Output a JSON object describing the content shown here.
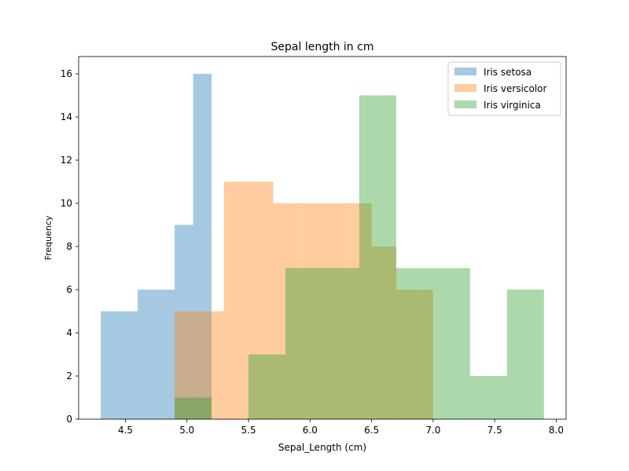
{
  "chart_data": {
    "type": "bar",
    "title": "Sepal length in cm",
    "xlabel": "Sepal_Length (cm)",
    "ylabel": "Frequency",
    "xlim": [
      4.12,
      8.08
    ],
    "ylim": [
      0,
      16.8
    ],
    "xticks": [
      4.5,
      5.0,
      5.5,
      6.0,
      6.5,
      7.0,
      7.5,
      8.0
    ],
    "xtick_labels": [
      "4.5",
      "5.0",
      "5.5",
      "6.0",
      "6.5",
      "7.0",
      "7.5",
      "8.0"
    ],
    "yticks": [
      0,
      2,
      4,
      6,
      8,
      10,
      12,
      14,
      16
    ],
    "ytick_labels": [
      "0",
      "2",
      "4",
      "6",
      "8",
      "10",
      "12",
      "14",
      "16"
    ],
    "legend_position": "top-right",
    "grid": false,
    "series": [
      {
        "name": "Iris setosa",
        "color": "#1f77b4",
        "bin_edges": [
          4.3,
          4.45,
          4.6,
          4.75,
          4.9,
          5.05,
          5.2,
          5.35,
          5.5,
          5.65,
          5.8
        ],
        "counts": [
          5,
          5,
          6,
          6,
          9,
          16,
          0,
          0,
          0,
          0
        ]
      },
      {
        "name": "Iris versicolor",
        "color": "#ff7f0e",
        "bin_edges": [
          4.9,
          5.1,
          5.3,
          5.5,
          5.7,
          5.9,
          6.1,
          6.3,
          6.5,
          6.7,
          6.9,
          7.0
        ],
        "counts": [
          5,
          5,
          11,
          11,
          10,
          10,
          10,
          10,
          8,
          6,
          6
        ]
      },
      {
        "name": "Iris virginica",
        "color": "#2ca02c",
        "bin_edges": [
          4.9,
          5.2,
          5.5,
          5.8,
          6.1,
          6.4,
          6.7,
          7.0,
          7.3,
          7.6,
          7.9
        ],
        "counts": [
          1,
          0,
          3,
          7,
          7,
          15,
          7,
          7,
          2,
          6
        ]
      }
    ],
    "overlay_bars": [
      {
        "series": "Iris versicolor",
        "x0": 4.9,
        "x1": 5.23,
        "value": 5
      },
      {
        "series": "Iris versicolor",
        "x0": 5.23,
        "x1": 5.57,
        "value": 4
      },
      {
        "series": "Iris versicolor",
        "x0": 5.57,
        "x1": 5.9,
        "value": 7
      },
      {
        "series": "Iris versicolor",
        "x0": 5.9,
        "x1": 6.23,
        "value": 5
      },
      {
        "series": "Iris versicolor",
        "x0": 6.23,
        "x1": 6.57,
        "value": 7
      },
      {
        "series": "Iris versicolor",
        "x0": 6.57,
        "x1": 7.0,
        "value": 6
      }
    ]
  }
}
